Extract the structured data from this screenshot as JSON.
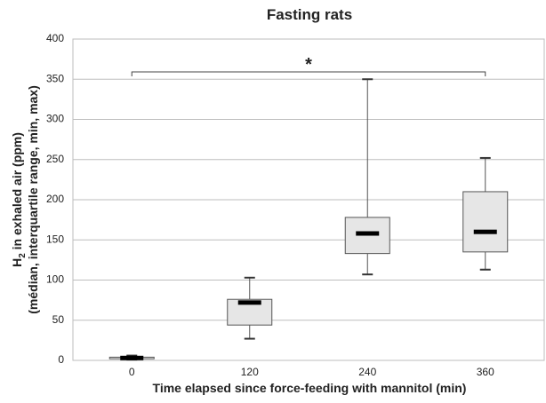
{
  "chart_data": {
    "type": "box",
    "title": "Fasting rats",
    "ylabel": {
      "main": "H",
      "sub": "2",
      "rest": " in exhaled air (ppm)"
    },
    "ylabel2": "(médian, interquartile range, min, max)",
    "xlabel": "Time elapsed since force-feeding with mannitol (min)",
    "categories": [
      "0",
      "120",
      "240",
      "360"
    ],
    "min": [
      1,
      27,
      107,
      113
    ],
    "q1": [
      2,
      44,
      133,
      135
    ],
    "median": [
      3,
      72,
      158,
      160
    ],
    "q3": [
      4,
      76,
      178,
      210
    ],
    "max": [
      6,
      103,
      350,
      252
    ],
    "color": "#e6e6e6",
    "ylim": [
      0,
      400
    ],
    "yticks": [
      0,
      50,
      100,
      150,
      200,
      250,
      300,
      350,
      400
    ],
    "grid": true,
    "annotation": "*"
  }
}
